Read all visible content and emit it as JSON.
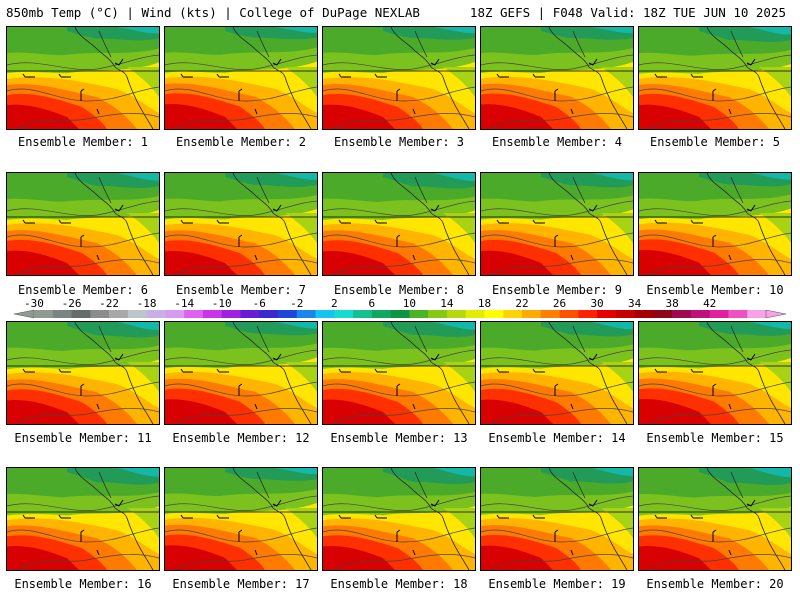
{
  "header": {
    "title": "850mb Temp (°C) | Wind (kts) | College of DuPage NEXLAB",
    "run_info": "18Z GEFS | F048 Valid: 18Z TUE JUN 10 2025"
  },
  "members": [
    {
      "label": "Ensemble Member: 1",
      "hot": 1.0,
      "cool": 0.55
    },
    {
      "label": "Ensemble Member: 2",
      "hot": 1.1,
      "cool": 0.45
    },
    {
      "label": "Ensemble Member: 3",
      "hot": 1.0,
      "cool": 0.5
    },
    {
      "label": "Ensemble Member: 4",
      "hot": 1.05,
      "cool": 0.5
    },
    {
      "label": "Ensemble Member: 5",
      "hot": 1.0,
      "cool": 0.7
    },
    {
      "label": "Ensemble Member: 6",
      "hot": 1.0,
      "cool": 0.7
    },
    {
      "label": "Ensemble Member: 7",
      "hot": 0.95,
      "cool": 0.6
    },
    {
      "label": "Ensemble Member: 8",
      "hot": 0.95,
      "cool": 0.75
    },
    {
      "label": "Ensemble Member: 9",
      "hot": 1.0,
      "cool": 0.65
    },
    {
      "label": "Ensemble Member: 10",
      "hot": 1.1,
      "cool": 0.55
    },
    {
      "label": "Ensemble Member: 11",
      "hot": 0.95,
      "cool": 0.75
    },
    {
      "label": "Ensemble Member: 12",
      "hot": 1.05,
      "cool": 0.55
    },
    {
      "label": "Ensemble Member: 13",
      "hot": 1.0,
      "cool": 0.7
    },
    {
      "label": "Ensemble Member: 14",
      "hot": 1.0,
      "cool": 0.65
    },
    {
      "label": "Ensemble Member: 15",
      "hot": 1.1,
      "cool": 0.6
    },
    {
      "label": "Ensemble Member: 16",
      "hot": 0.95,
      "cool": 0.85
    },
    {
      "label": "Ensemble Member: 17",
      "hot": 1.05,
      "cool": 0.5
    },
    {
      "label": "Ensemble Member: 18",
      "hot": 0.95,
      "cool": 0.8
    },
    {
      "label": "Ensemble Member: 19",
      "hot": 1.0,
      "cool": 0.75
    },
    {
      "label": "Ensemble Member: 20",
      "hot": 0.95,
      "cool": 0.9
    }
  ],
  "colorbar": {
    "labels": [
      "-30",
      "-26",
      "-22",
      "-18",
      "-14",
      "-10",
      "-6",
      "-2",
      "2",
      "6",
      "10",
      "14",
      "18",
      "22",
      "26",
      "30",
      "34",
      "38",
      "42"
    ],
    "colors": [
      "#8e9a92",
      "#7a8480",
      "#666c6a",
      "#8c8c8c",
      "#a8a8a8",
      "#bcc4cc",
      "#c8b0e6",
      "#d89af0",
      "#e060f0",
      "#c836e8",
      "#a020e0",
      "#6a1bd6",
      "#3a2ad0",
      "#1e48dc",
      "#1a86ea",
      "#16c4f2",
      "#14dcd0",
      "#14c090",
      "#10a860",
      "#0c9440",
      "#4cb424",
      "#86c812",
      "#b4d80c",
      "#e4ec06",
      "#ffff00",
      "#ffd400",
      "#ffaa00",
      "#ff8000",
      "#ff5000",
      "#ff2000",
      "#e80000",
      "#c80000",
      "#a80000",
      "#900418",
      "#a00850",
      "#c0107c",
      "#e020a0",
      "#f050c0",
      "#f8a0e8"
    ]
  }
}
